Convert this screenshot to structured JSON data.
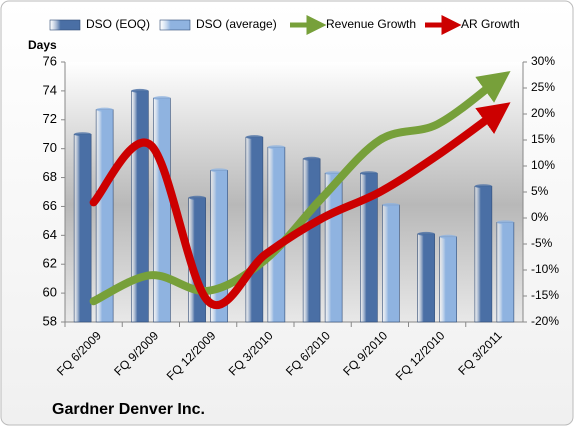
{
  "chart_data": {
    "type": "combo",
    "title": "Gardner Denver Inc.",
    "ylabel": "Days",
    "categories": [
      "FQ 6/2009",
      "FQ 9/2009",
      "FQ 12/2009",
      "FQ 3/2010",
      "FQ 6/2010",
      "FQ 9/2010",
      "FQ 12/2010",
      "FQ 3/2011"
    ],
    "series": [
      {
        "name": "DSO (EOQ)",
        "type": "bar",
        "color": "#4a6fa5",
        "values": [
          71.0,
          74.0,
          66.6,
          70.8,
          69.3,
          68.3,
          64.1,
          67.4
        ]
      },
      {
        "name": "DSO (average)",
        "type": "bar",
        "color": "#8fb3e0",
        "values": [
          72.7,
          73.5,
          68.5,
          70.1,
          68.3,
          66.1,
          63.9,
          64.9
        ]
      },
      {
        "name": "Revenue Growth",
        "type": "line",
        "axis": "y2",
        "color": "#77a03a",
        "values": [
          -16,
          -11,
          -14,
          -8,
          4,
          15,
          18,
          26
        ]
      },
      {
        "name": "AR Growth",
        "type": "line",
        "axis": "y2",
        "color": "#cc0000",
        "values": [
          3,
          14,
          -16,
          -7,
          0,
          5,
          12,
          20
        ]
      }
    ],
    "ylim": [
      58,
      76
    ],
    "yticks": [
      58,
      60,
      62,
      64,
      66,
      68,
      70,
      72,
      74,
      76
    ],
    "y2lim": [
      -20,
      30
    ],
    "y2ticks": [
      {
        "value": -20,
        "label": "-20%"
      },
      {
        "value": -15,
        "label": "-15%"
      },
      {
        "value": -10,
        "label": "-10%"
      },
      {
        "value": -5,
        "label": "-5%"
      },
      {
        "value": 0,
        "label": "0%"
      },
      {
        "value": 5,
        "label": "5%"
      },
      {
        "value": 10,
        "label": "10%"
      },
      {
        "value": 15,
        "label": "15%"
      },
      {
        "value": 20,
        "label": "20%"
      },
      {
        "value": 25,
        "label": "25%"
      },
      {
        "value": 30,
        "label": "30%"
      }
    ],
    "grid": false
  }
}
